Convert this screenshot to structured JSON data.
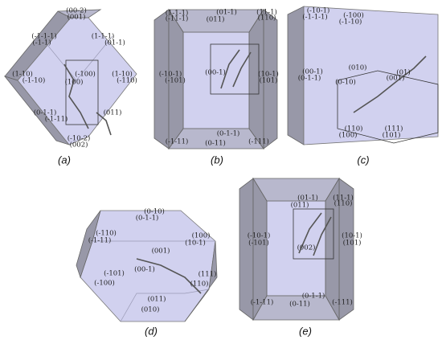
{
  "panels": [
    {
      "label": "(a)",
      "faces": [
        "(00-2)",
        "(001)",
        "(-1-1-1)",
        "(-1-1)",
        "(1-1-1)",
        "(01-1)",
        "(1-10)",
        "(-1-10)",
        "(-100)",
        "(100)",
        "(1-10)",
        "(-110)",
        "(0-1-1)",
        "(-1-11)",
        "(011)",
        "(-10-2)",
        "(002)"
      ]
    },
    {
      "label": "(b)",
      "faces": [
        "(1-1-1)",
        "(-11-1)",
        "(01-1)",
        "(011)",
        "(11-1)",
        "(110)",
        "(-10-1)",
        "(-101)",
        "(10-1)",
        "(101)",
        "(00-1)",
        "(0-1-1)",
        "(0-11)",
        "(-1-11)",
        "(-111)"
      ]
    },
    {
      "label": "(c)",
      "faces": [
        "(-10-1)",
        "(-1-1-1)",
        "(-100)",
        "(-1-10)",
        "(00-1)",
        "(0-1-1)",
        "(010)",
        "(0-10)",
        "(01)",
        "(001)",
        "(110)",
        "(100)",
        "(111)",
        "(101)"
      ]
    },
    {
      "label": "(d)",
      "faces": [
        "(0-10)",
        "(0-1-1)",
        "(-110)",
        "(-1-11)",
        "(001)",
        "(100)",
        "(10-1)",
        "(00-1)",
        "(-101)",
        "(-100)",
        "(110)",
        "(111)",
        "(011)",
        "(010)"
      ]
    },
    {
      "label": "(e)",
      "faces": [
        "(01-1)",
        "(011)",
        "(11-1)",
        "(110)",
        "(-10-1)",
        "(-101)",
        "(10-1)",
        "(101)",
        "(002)",
        "(0-1-1)",
        "(0-11)",
        "(-1-11)",
        "(-111)"
      ]
    }
  ]
}
